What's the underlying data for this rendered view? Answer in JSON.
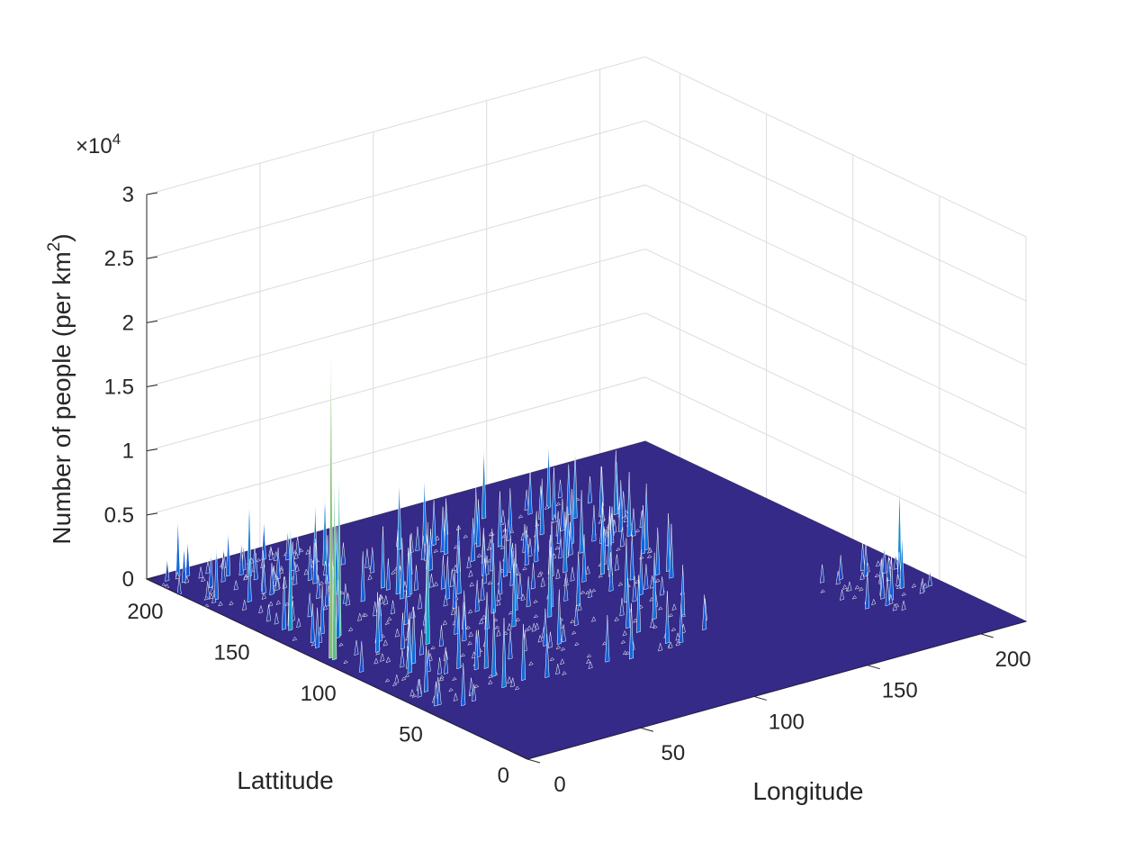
{
  "chart_data": {
    "type": "surface",
    "title": "",
    "xlabel": "Longitude",
    "ylabel": "Lattitude",
    "zlabel_main": "Number of people (per km",
    "zlabel_sup": "2",
    "zlabel_close": ")",
    "z_multiplier": "×10",
    "z_multiplier_exp": "4",
    "xlim": [
      0,
      220
    ],
    "ylim": [
      0,
      220
    ],
    "zlim": [
      0,
      3
    ],
    "x_ticks": [
      "0",
      "50",
      "100",
      "150",
      "200"
    ],
    "y_ticks": [
      "0",
      "50",
      "100",
      "150",
      "200"
    ],
    "z_ticks": [
      "0",
      "0.5",
      "1",
      "1.5",
      "2",
      "2.5",
      "3"
    ],
    "x_tick_values": [
      0,
      50,
      100,
      150,
      200
    ],
    "y_tick_values": [
      0,
      50,
      100,
      150,
      200
    ],
    "z_tick_values": [
      0,
      0.5,
      1,
      1.5,
      2,
      2.5,
      3
    ],
    "grid": true,
    "colormap": "parula",
    "base_color": "#352a87",
    "peaks": [
      {
        "x": 5,
        "y": 120,
        "z": 2.5
      },
      {
        "x": 5,
        "y": 118,
        "z": 1.45
      },
      {
        "x": 20,
        "y": 135,
        "z": 1.3
      },
      {
        "x": 10,
        "y": 150,
        "z": 0.85
      },
      {
        "x": 40,
        "y": 110,
        "z": 0.95
      },
      {
        "x": 90,
        "y": 105,
        "z": 0.6
      },
      {
        "x": 120,
        "y": 100,
        "z": 0.5
      },
      {
        "x": 150,
        "y": 115,
        "z": 0.45
      },
      {
        "x": 205,
        "y": 52,
        "z": 0.42
      },
      {
        "x": 210,
        "y": 60,
        "z": 0.75
      },
      {
        "x": 195,
        "y": 45,
        "z": 0.35
      },
      {
        "x": 30,
        "y": 200,
        "z": 0.6
      },
      {
        "x": 10,
        "y": 215,
        "z": 0.45
      },
      {
        "x": 100,
        "y": 185,
        "z": 0.35
      }
    ]
  }
}
